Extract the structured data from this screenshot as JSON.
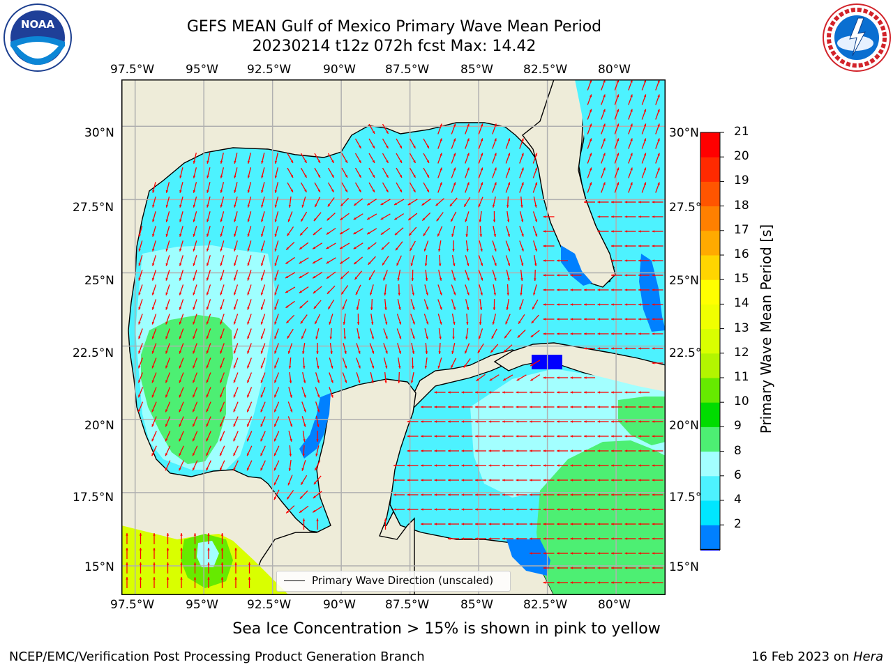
{
  "title": {
    "line1": "GEFS MEAN Gulf of Mexico Primary Wave Mean Period",
    "line2": "20230214 t12z 072h fcst   Max: 14.42"
  },
  "axes": {
    "lon_ticks": [
      "97.5°W",
      "95°W",
      "92.5°W",
      "90°W",
      "87.5°W",
      "85°W",
      "82.5°W",
      "80°W"
    ],
    "lat_ticks": [
      "30°N",
      "27.5°N",
      "25°N",
      "22.5°N",
      "20°N",
      "17.5°N",
      "15°N"
    ],
    "lon_range": [
      -98,
      -78.2
    ],
    "lat_range": [
      14,
      31.6
    ]
  },
  "colorbar": {
    "label": "Primary Wave Mean Period [s]",
    "ticks": [
      "21",
      "20",
      "19",
      "18",
      "17",
      "16",
      "15",
      "14",
      "13",
      "12",
      "11",
      "10",
      "9",
      "8",
      "6",
      "4",
      "2"
    ],
    "bins": [
      {
        "color": "#0000ff"
      },
      {
        "color": "#0080ff"
      },
      {
        "color": "#00e6ff"
      },
      {
        "color": "#4df2ff"
      },
      {
        "color": "#a3ffff"
      },
      {
        "color": "#4def73"
      },
      {
        "color": "#00dc00"
      },
      {
        "color": "#66ea00"
      },
      {
        "color": "#b3f500"
      },
      {
        "color": "#d9ff00"
      },
      {
        "color": "#f0ff00"
      },
      {
        "color": "#ffff00"
      },
      {
        "color": "#ffd500"
      },
      {
        "color": "#ffaa00"
      },
      {
        "color": "#ff8000"
      },
      {
        "color": "#ff5500"
      },
      {
        "color": "#ff2a00"
      },
      {
        "color": "#ff0000"
      }
    ]
  },
  "colors": {
    "land": "#eeecd9",
    "grid": "#b0b0b0",
    "arrow": "#ff0000",
    "coast": "#000000"
  },
  "legend": {
    "label": "Primary Wave Direction (unscaled)"
  },
  "subtitle": "Sea Ice Concentration > 15% is shown in pink to yellow",
  "footer": {
    "left": "NCEP/EMC/Verification Post Processing Product Generation Branch",
    "right_prefix": "16 Feb 2023 on ",
    "right_host": "Hera"
  },
  "logos": {
    "left": {
      "icon": "noaa-logo",
      "text": "NOAA"
    },
    "right": {
      "icon": "nws-logo",
      "text": "NATIONAL WEATHER SERVICE"
    }
  }
}
